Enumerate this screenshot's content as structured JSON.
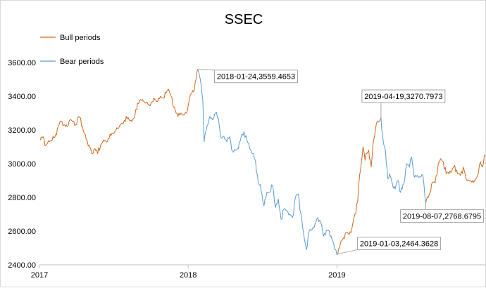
{
  "chart_data": {
    "type": "line",
    "title": "SSEC",
    "xlabel": "",
    "ylabel": "",
    "ylim": [
      2400,
      3650
    ],
    "xlim": [
      "2017-01-01",
      "2019-12-31"
    ],
    "y_ticks": [
      "2400.00",
      "2600.00",
      "2800.00",
      "3000.00",
      "3200.00",
      "3400.00",
      "3600.00"
    ],
    "x_ticks": [
      {
        "date": "2017-01-01",
        "label": "2017"
      },
      {
        "date": "2018-01-01",
        "label": "2018"
      },
      {
        "date": "2019-01-01",
        "label": "2019"
      }
    ],
    "legend_position": "top-left",
    "colors": {
      "bull": "#d2691e",
      "bear": "#5b9bd5",
      "axis": "#bfbfbf",
      "leader": "#a6a6a6"
    },
    "series": [
      {
        "name": "Bull periods",
        "color": "#d2691e",
        "segments": [
          [
            [
              "2017-01-03",
              3140
            ],
            [
              "2017-01-10",
              3160
            ],
            [
              "2017-01-17",
              3110
            ],
            [
              "2017-01-25",
              3130
            ],
            [
              "2017-02-08",
              3160
            ],
            [
              "2017-02-16",
              3220
            ],
            [
              "2017-02-23",
              3250
            ],
            [
              "2017-03-02",
              3230
            ],
            [
              "2017-03-10",
              3220
            ],
            [
              "2017-03-17",
              3260
            ],
            [
              "2017-03-24",
              3250
            ],
            [
              "2017-03-31",
              3230
            ],
            [
              "2017-04-07",
              3280
            ],
            [
              "2017-04-12",
              3270
            ],
            [
              "2017-04-19",
              3190
            ],
            [
              "2017-04-26",
              3140
            ],
            [
              "2017-05-03",
              3110
            ],
            [
              "2017-05-10",
              3060
            ],
            [
              "2017-05-17",
              3090
            ],
            [
              "2017-05-24",
              3060
            ],
            [
              "2017-05-31",
              3110
            ],
            [
              "2017-06-07",
              3140
            ],
            [
              "2017-06-14",
              3130
            ],
            [
              "2017-06-21",
              3150
            ],
            [
              "2017-06-28",
              3180
            ],
            [
              "2017-07-05",
              3190
            ],
            [
              "2017-07-12",
              3210
            ],
            [
              "2017-07-19",
              3230
            ],
            [
              "2017-07-26",
              3240
            ],
            [
              "2017-08-02",
              3280
            ],
            [
              "2017-08-09",
              3260
            ],
            [
              "2017-08-16",
              3250
            ],
            [
              "2017-08-23",
              3280
            ],
            [
              "2017-08-30",
              3360
            ],
            [
              "2017-09-06",
              3380
            ],
            [
              "2017-09-13",
              3370
            ],
            [
              "2017-09-20",
              3360
            ],
            [
              "2017-09-27",
              3350
            ],
            [
              "2017-10-11",
              3380
            ],
            [
              "2017-10-18",
              3370
            ],
            [
              "2017-10-25",
              3400
            ],
            [
              "2017-11-01",
              3390
            ],
            [
              "2017-11-08",
              3420
            ],
            [
              "2017-11-14",
              3440
            ],
            [
              "2017-11-20",
              3400
            ],
            [
              "2017-11-24",
              3350
            ],
            [
              "2017-11-30",
              3320
            ],
            [
              "2017-12-07",
              3280
            ],
            [
              "2017-12-14",
              3300
            ],
            [
              "2017-12-21",
              3290
            ],
            [
              "2017-12-28",
              3300
            ],
            [
              "2018-01-04",
              3380
            ],
            [
              "2018-01-10",
              3420
            ],
            [
              "2018-01-16",
              3440
            ],
            [
              "2018-01-20",
              3500
            ],
            [
              "2018-01-24",
              3559.4653
            ]
          ],
          [
            [
              "2019-01-03",
              2464.3628
            ],
            [
              "2019-01-10",
              2535
            ],
            [
              "2019-01-17",
              2560
            ],
            [
              "2019-01-24",
              2590
            ],
            [
              "2019-01-31",
              2580
            ],
            [
              "2019-02-07",
              2620
            ],
            [
              "2019-02-14",
              2700
            ],
            [
              "2019-02-21",
              2780
            ],
            [
              "2019-02-26",
              2940
            ],
            [
              "2019-03-01",
              2990
            ],
            [
              "2019-03-06",
              3100
            ],
            [
              "2019-03-11",
              3020
            ],
            [
              "2019-03-15",
              3060
            ],
            [
              "2019-03-20",
              3080
            ],
            [
              "2019-03-26",
              2980
            ],
            [
              "2019-04-01",
              3140
            ],
            [
              "2019-04-08",
              3240
            ],
            [
              "2019-04-15",
              3250
            ],
            [
              "2019-04-19",
              3270.7973
            ]
          ],
          [
            [
              "2019-08-07",
              2768.6795
            ],
            [
              "2019-08-15",
              2815
            ],
            [
              "2019-08-23",
              2890
            ],
            [
              "2019-08-30",
              2885
            ],
            [
              "2019-09-06",
              2990
            ],
            [
              "2019-09-12",
              3030
            ],
            [
              "2019-09-19",
              3010
            ],
            [
              "2019-09-26",
              2940
            ],
            [
              "2019-10-10",
              2960
            ],
            [
              "2019-10-17",
              2990
            ],
            [
              "2019-10-24",
              2940
            ],
            [
              "2019-10-31",
              2930
            ],
            [
              "2019-11-07",
              2980
            ],
            [
              "2019-11-14",
              2910
            ],
            [
              "2019-11-21",
              2900
            ],
            [
              "2019-11-28",
              2890
            ],
            [
              "2019-12-05",
              2900
            ],
            [
              "2019-12-12",
              2930
            ],
            [
              "2019-12-19",
              3010
            ],
            [
              "2019-12-24",
              2980
            ],
            [
              "2019-12-31",
              3050
            ]
          ]
        ]
      },
      {
        "name": "Bear periods",
        "color": "#5b9bd5",
        "segments": [
          [
            [
              "2018-01-24",
              3559.4653
            ],
            [
              "2018-01-29",
              3520
            ],
            [
              "2018-02-02",
              3460
            ],
            [
              "2018-02-06",
              3370
            ],
            [
              "2018-02-09",
              3130
            ],
            [
              "2018-02-14",
              3200
            ],
            [
              "2018-02-23",
              3280
            ],
            [
              "2018-03-02",
              3260
            ],
            [
              "2018-03-09",
              3300
            ],
            [
              "2018-03-16",
              3270
            ],
            [
              "2018-03-23",
              3150
            ],
            [
              "2018-03-30",
              3160
            ],
            [
              "2018-04-06",
              3130
            ],
            [
              "2018-04-13",
              3160
            ],
            [
              "2018-04-20",
              3070
            ],
            [
              "2018-04-27",
              3080
            ],
            [
              "2018-05-04",
              3090
            ],
            [
              "2018-05-11",
              3160
            ],
            [
              "2018-05-18",
              3190
            ],
            [
              "2018-05-25",
              3140
            ],
            [
              "2018-06-01",
              3090
            ],
            [
              "2018-06-08",
              3060
            ],
            [
              "2018-06-15",
              3020
            ],
            [
              "2018-06-22",
              2890
            ],
            [
              "2018-06-29",
              2840
            ],
            [
              "2018-07-06",
              2750
            ],
            [
              "2018-07-13",
              2830
            ],
            [
              "2018-07-20",
              2830
            ],
            [
              "2018-07-27",
              2870
            ],
            [
              "2018-08-03",
              2740
            ],
            [
              "2018-08-10",
              2790
            ],
            [
              "2018-08-17",
              2670
            ],
            [
              "2018-08-24",
              2730
            ],
            [
              "2018-08-31",
              2720
            ],
            [
              "2018-09-07",
              2700
            ],
            [
              "2018-09-14",
              2680
            ],
            [
              "2018-09-21",
              2800
            ],
            [
              "2018-09-28",
              2820
            ],
            [
              "2018-10-11",
              2590
            ],
            [
              "2018-10-18",
              2490
            ],
            [
              "2018-10-25",
              2600
            ],
            [
              "2018-11-01",
              2610
            ],
            [
              "2018-11-08",
              2640
            ],
            [
              "2018-11-15",
              2680
            ],
            [
              "2018-11-22",
              2650
            ],
            [
              "2018-11-29",
              2570
            ],
            [
              "2018-12-06",
              2605
            ],
            [
              "2018-12-13",
              2600
            ],
            [
              "2018-12-20",
              2550
            ],
            [
              "2018-12-27",
              2490
            ],
            [
              "2019-01-03",
              2464.3628
            ]
          ],
          [
            [
              "2019-04-19",
              3270.7973
            ],
            [
              "2019-04-25",
              3120
            ],
            [
              "2019-04-30",
              3080
            ],
            [
              "2019-05-06",
              2910
            ],
            [
              "2019-05-10",
              2940
            ],
            [
              "2019-05-17",
              2880
            ],
            [
              "2019-05-24",
              2850
            ],
            [
              "2019-05-31",
              2900
            ],
            [
              "2019-06-06",
              2830
            ],
            [
              "2019-06-14",
              2880
            ],
            [
              "2019-06-21",
              3000
            ],
            [
              "2019-06-28",
              2980
            ],
            [
              "2019-07-03",
              3040
            ],
            [
              "2019-07-10",
              2920
            ],
            [
              "2019-07-17",
              2930
            ],
            [
              "2019-07-24",
              2920
            ],
            [
              "2019-07-31",
              2930
            ],
            [
              "2019-08-07",
              2768.6795
            ]
          ]
        ]
      }
    ],
    "annotations": [
      {
        "date": "2018-01-24",
        "value": 3559.4653,
        "label": "2018-01-24,3559.4653",
        "side": "right-below"
      },
      {
        "date": "2019-04-19",
        "value": 3270.7973,
        "label": "2019-04-19,3270.7973",
        "side": "above"
      },
      {
        "date": "2019-01-03",
        "value": 2464.3628,
        "label": "2019-01-03,2464.3628",
        "side": "right"
      },
      {
        "date": "2019-08-07",
        "value": 2768.6795,
        "label": "2019-08-07,2768.6795",
        "side": "below"
      }
    ]
  }
}
